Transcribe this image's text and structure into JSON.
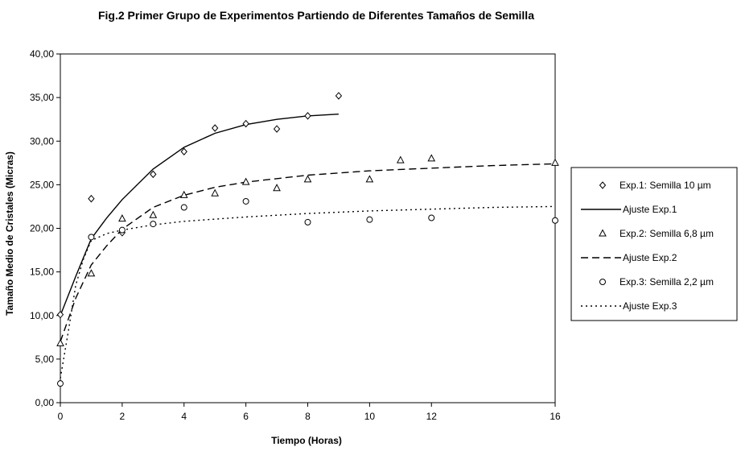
{
  "chart_data": {
    "type": "scatter",
    "title": "Fig.2 Primer Grupo de Experimentos Partiendo de Diferentes Tamaños de Semilla",
    "xlabel": "Tiempo (Horas)",
    "ylabel": "Tamaño Medio de Cristales (Micras)",
    "xlim": [
      0,
      16
    ],
    "ylim": [
      0,
      40
    ],
    "x_ticks": [
      0,
      2,
      4,
      6,
      8,
      10,
      12,
      16
    ],
    "x_tick_labels": [
      "0",
      "2",
      "4",
      "6",
      "8",
      "10",
      "12",
      "16"
    ],
    "y_ticks": [
      0,
      5,
      10,
      15,
      20,
      25,
      30,
      35,
      40
    ],
    "y_tick_labels": [
      "0,00",
      "5,00",
      "10,00",
      "15,00",
      "20,00",
      "25,00",
      "30,00",
      "35,00",
      "40,00"
    ],
    "grid": false,
    "legend_position": "right",
    "legend": [
      "Exp.1: Semilla 10 µm",
      "Ajuste Exp.1",
      "Exp.2: Semilla 6,8 µm",
      "Ajuste Exp.2",
      "Exp.3: Semilla 2,2 µm",
      "Ajuste Exp.3"
    ],
    "series": [
      {
        "name": "Exp.1: Semilla 10 µm",
        "kind": "points",
        "marker": "diamond",
        "x": [
          0,
          1,
          2,
          3,
          4,
          5,
          6,
          7,
          8,
          9
        ],
        "y": [
          10.1,
          23.4,
          19.5,
          26.2,
          28.8,
          31.5,
          32.0,
          31.4,
          32.9,
          35.2
        ]
      },
      {
        "name": "Ajuste Exp.1",
        "kind": "line",
        "dash": "solid",
        "x": [
          0,
          0.5,
          1,
          1.5,
          2,
          3,
          4,
          5,
          6,
          7,
          8,
          9
        ],
        "y": [
          10.0,
          14.5,
          18.8,
          21.2,
          23.3,
          26.8,
          29.3,
          30.9,
          31.9,
          32.5,
          32.9,
          33.1
        ]
      },
      {
        "name": "Exp.2: Semilla 6,8 µm",
        "kind": "points",
        "marker": "triangle",
        "x": [
          0,
          1,
          2,
          3,
          4,
          5,
          6,
          7,
          8,
          10,
          11,
          12,
          16
        ],
        "y": [
          6.8,
          14.8,
          21.1,
          21.5,
          23.8,
          24.0,
          25.3,
          24.6,
          25.6,
          25.6,
          27.8,
          28.0,
          27.5
        ]
      },
      {
        "name": "Ajuste Exp.2",
        "kind": "line",
        "dash": "dashed",
        "x": [
          0,
          0.5,
          1,
          1.5,
          2,
          3,
          4,
          5,
          6,
          8,
          10,
          12,
          14,
          16
        ],
        "y": [
          7.0,
          12.0,
          15.8,
          18.0,
          19.9,
          22.4,
          23.8,
          24.7,
          25.3,
          26.1,
          26.6,
          26.9,
          27.2,
          27.4
        ]
      },
      {
        "name": "Exp.3: Semilla 2,2 µm",
        "kind": "points",
        "marker": "circle",
        "x": [
          0,
          1,
          2,
          3,
          4,
          6,
          8,
          10,
          12,
          16
        ],
        "y": [
          2.2,
          19.0,
          19.8,
          20.5,
          22.4,
          23.1,
          20.7,
          21.0,
          21.2,
          20.9
        ]
      },
      {
        "name": "Ajuste Exp.3",
        "kind": "line",
        "dash": "dotted",
        "x": [
          0,
          0.25,
          0.5,
          0.75,
          1,
          1.5,
          2,
          3,
          4,
          6,
          8,
          10,
          12,
          14,
          16
        ],
        "y": [
          2.8,
          8.0,
          13.5,
          16.5,
          18.6,
          19.4,
          19.8,
          20.4,
          20.8,
          21.3,
          21.7,
          22.0,
          22.2,
          22.4,
          22.5
        ]
      }
    ]
  }
}
